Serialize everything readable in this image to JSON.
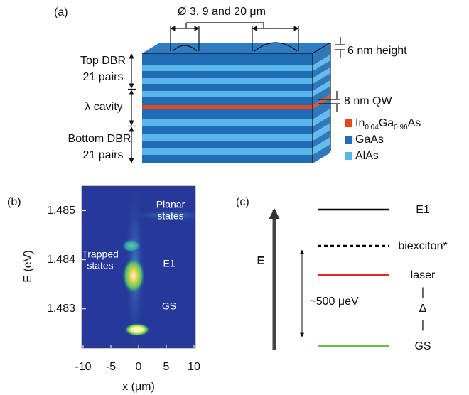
{
  "panel_a": {
    "label": "(a)",
    "dimension_label": "Ø 3, 9 and 20 μm",
    "left_labels": [
      "Top DBR",
      "21 pairs",
      "λ cavity",
      "Bottom DBR",
      "21 pairs"
    ],
    "right_labels": [
      "6 nm height",
      "8 nm QW"
    ],
    "legend": [
      {
        "parts": [
          "In",
          "0.04",
          "Ga",
          "0.96",
          "As"
        ],
        "color": "#e8461e"
      },
      {
        "name": "GaAs",
        "color": "#1f6db5"
      },
      {
        "name": "AlAs",
        "color": "#58b6ea"
      }
    ]
  },
  "panel_b": {
    "label": "(b)",
    "xlabel": "x (μm)",
    "ylabel": "E (eV)",
    "xlim": [
      -10,
      10
    ],
    "ylim": [
      1.4822,
      1.4855
    ],
    "xticks": [
      -10,
      -5,
      0,
      5,
      10
    ],
    "yticks": [
      1.483,
      1.484,
      1.485
    ],
    "annotations": [
      "Planar",
      "states",
      "Trapped",
      "states",
      "E1",
      "GS"
    ]
  },
  "panel_c": {
    "label": "(c)",
    "axis_label": "E",
    "splitting_label": "~500 μeV",
    "levels": [
      {
        "name": "E1",
        "color": "#000000",
        "style": "solid"
      },
      {
        "name": "biexciton*",
        "color": "#000000",
        "style": "dashed"
      },
      {
        "name": "laser",
        "color": "#e02a1f",
        "style": "solid"
      },
      {
        "name": "GS",
        "color": "#6cc04a",
        "style": "solid"
      }
    ],
    "delta_labels": [
      "|",
      "Δ",
      "|"
    ]
  }
}
